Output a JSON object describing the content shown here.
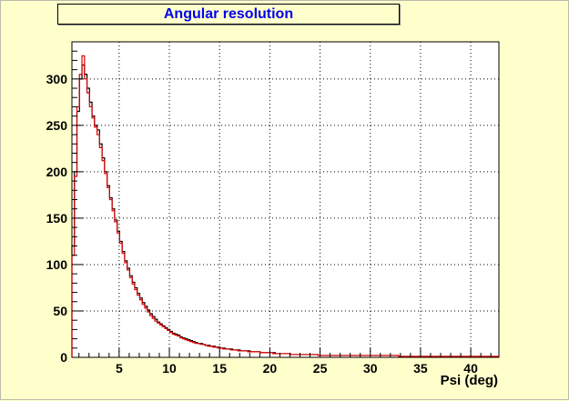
{
  "chart_data": {
    "type": "histogram",
    "title": "Angular resolution",
    "xlabel": "Psi (deg)",
    "ylabel": "",
    "xlim": [
      0.3,
      42.8
    ],
    "ylim": [
      0,
      340
    ],
    "xticks": [
      5,
      10,
      15,
      20,
      25,
      30,
      35,
      40
    ],
    "yticks": [
      0,
      50,
      100,
      150,
      200,
      250,
      300
    ],
    "grid": true,
    "series": [
      {
        "color": "#000000",
        "bin_width": 0.25,
        "x_start": 0.3,
        "values": [
          120,
          200,
          265,
          300,
          315,
          305,
          290,
          275,
          260,
          250,
          245,
          230,
          215,
          200,
          185,
          172,
          160,
          148,
          136,
          125,
          114,
          104,
          96,
          88,
          81,
          75,
          69,
          64,
          59,
          55,
          51,
          47,
          44,
          41,
          38,
          36,
          34,
          32,
          30,
          28,
          26,
          25,
          24,
          22,
          21,
          20,
          19,
          18,
          17,
          16,
          15,
          15,
          14,
          13,
          13,
          12,
          12,
          11,
          11,
          10,
          10,
          9,
          9,
          9,
          8,
          8,
          8,
          7,
          7,
          7,
          7,
          6,
          6,
          6,
          6,
          5,
          5,
          5,
          5,
          5,
          5,
          4,
          4,
          4,
          4,
          4,
          4,
          3,
          3,
          3,
          3,
          3,
          3,
          3,
          3,
          3,
          3,
          3,
          2,
          2,
          2,
          2,
          2,
          2,
          2,
          2,
          2,
          2,
          2,
          2,
          2,
          2,
          2,
          2,
          2,
          2,
          2,
          2,
          2,
          2,
          2,
          2,
          2,
          2,
          2,
          2,
          2,
          2,
          2,
          2,
          1,
          1,
          1,
          1,
          1,
          1,
          1,
          1,
          1,
          1,
          1,
          1,
          1,
          1,
          1,
          1,
          1,
          1,
          1,
          1,
          1,
          1,
          1,
          1,
          1,
          1,
          1,
          1,
          1,
          1,
          1,
          1,
          1,
          1,
          1,
          1,
          1,
          1,
          1,
          1
        ]
      },
      {
        "color": "#dd0000",
        "bin_width": 0.25,
        "x_start": 0.3,
        "values": [
          110,
          195,
          270,
          305,
          325,
          300,
          285,
          270,
          258,
          248,
          240,
          226,
          212,
          198,
          183,
          170,
          158,
          146,
          134,
          123,
          112,
          102,
          94,
          86,
          79,
          73,
          67,
          62,
          57,
          53,
          49,
          45,
          42,
          39,
          37,
          35,
          33,
          31,
          29,
          27,
          25,
          24,
          23,
          21,
          20,
          19,
          18,
          17,
          16,
          15,
          15,
          14,
          14,
          13,
          12,
          12,
          11,
          11,
          10,
          10,
          9,
          9,
          9,
          8,
          8,
          8,
          7,
          7,
          7,
          7,
          6,
          6,
          6,
          6,
          6,
          5,
          5,
          5,
          5,
          5,
          4,
          4,
          4,
          4,
          4,
          4,
          4,
          3,
          3,
          3,
          3,
          3,
          3,
          3,
          3,
          3,
          3,
          3,
          2,
          2,
          2,
          2,
          2,
          2,
          2,
          2,
          2,
          2,
          2,
          2,
          2,
          2,
          2,
          2,
          2,
          2,
          2,
          2,
          2,
          2,
          2,
          2,
          2,
          2,
          2,
          2,
          2,
          2,
          2,
          2,
          1,
          1,
          1,
          1,
          1,
          1,
          1,
          1,
          1,
          1,
          1,
          1,
          1,
          1,
          1,
          1,
          1,
          1,
          1,
          1,
          1,
          1,
          1,
          1,
          1,
          1,
          1,
          1,
          1,
          1,
          1,
          1,
          1,
          1,
          1,
          1,
          1,
          1,
          1,
          1
        ]
      }
    ]
  }
}
